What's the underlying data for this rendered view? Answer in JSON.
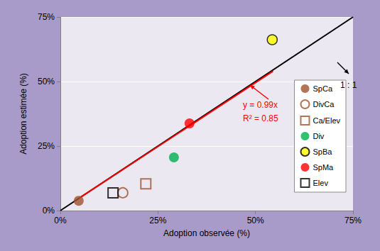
{
  "chart_data": {
    "type": "scatter",
    "x_label": "Adoption observée (%)",
    "y_label": "Adoption estimée (%)",
    "xlim": [
      0,
      75
    ],
    "ylim": [
      0,
      75
    ],
    "xticks": [
      {
        "value": 0,
        "label": "0%"
      },
      {
        "value": 25,
        "label": "25%"
      },
      {
        "value": 50,
        "label": "50%"
      },
      {
        "value": 75,
        "label": "75%"
      }
    ],
    "yticks": [
      {
        "value": 0,
        "label": "0%"
      },
      {
        "value": 25,
        "label": "25%"
      },
      {
        "value": 50,
        "label": "50%"
      },
      {
        "value": 75,
        "label": "75%"
      }
    ],
    "grid": "y",
    "legend": "right",
    "series": [
      {
        "name": "SpCa",
        "color": "#a0522d",
        "marker": "circle",
        "x": [
          4.7
        ],
        "y": [
          3.8
        ]
      },
      {
        "name": "DivCa",
        "color": "#a0522d",
        "marker": "circle-open",
        "x": [
          16.0
        ],
        "y": [
          6.9
        ]
      },
      {
        "name": "Ca/Elev",
        "color": "#a0522d",
        "marker": "square-open",
        "x": [
          21.9
        ],
        "y": [
          10.4
        ]
      },
      {
        "name": "Div",
        "color": "#00b050",
        "marker": "circle",
        "x": [
          29.1
        ],
        "y": [
          20.6
        ]
      },
      {
        "name": "SpBa",
        "color": "#ffff00",
        "marker": "circle-edged",
        "x": [
          54.3
        ],
        "y": [
          66.2
        ]
      },
      {
        "name": "SpMa",
        "color": "#ff0000",
        "marker": "circle",
        "x": [
          33.1
        ],
        "y": [
          33.8
        ]
      },
      {
        "name": "Elev",
        "color": "#000000",
        "marker": "square-open",
        "x": [
          13.5
        ],
        "y": [
          6.9
        ]
      }
    ],
    "lines": [
      {
        "color": "#000000",
        "x": [
          0,
          75
        ],
        "y": [
          0,
          75
        ]
      },
      {
        "color": "#ff0000",
        "x": [
          4.7,
          54.5
        ],
        "y": [
          4.7,
          54.0
        ]
      }
    ],
    "annotations": [
      {
        "text": "1 : 1",
        "color": "#000000"
      },
      {
        "text": "y = 0.99x",
        "color": "#ff0000"
      },
      {
        "text": "R² = 0.85",
        "color": "#ff0000"
      }
    ]
  }
}
